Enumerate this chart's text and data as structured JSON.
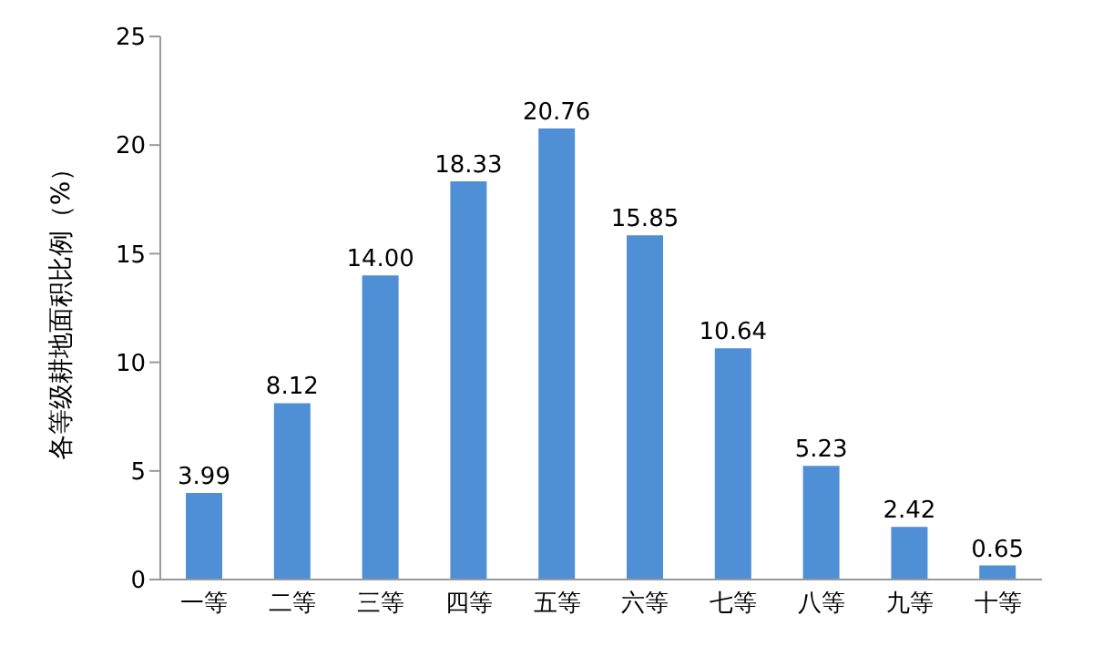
{
  "chart_data": {
    "type": "bar",
    "ylabel": "各等级耕地面积比例（%）",
    "categories": [
      "一等",
      "二等",
      "三等",
      "四等",
      "五等",
      "六等",
      "七等",
      "八等",
      "九等",
      "十等"
    ],
    "values": [
      3.99,
      8.12,
      14.0,
      18.33,
      20.76,
      15.85,
      10.64,
      5.23,
      2.42,
      0.65
    ],
    "value_labels": [
      "3.99",
      "8.12",
      "14.00",
      "18.33",
      "20.76",
      "15.85",
      "10.64",
      "5.23",
      "2.42",
      "0.65"
    ],
    "color": "#4f8fd6",
    "ylim": [
      0,
      25
    ],
    "yticks": [
      0,
      5,
      10,
      15,
      20,
      25
    ],
    "grid": false
  }
}
